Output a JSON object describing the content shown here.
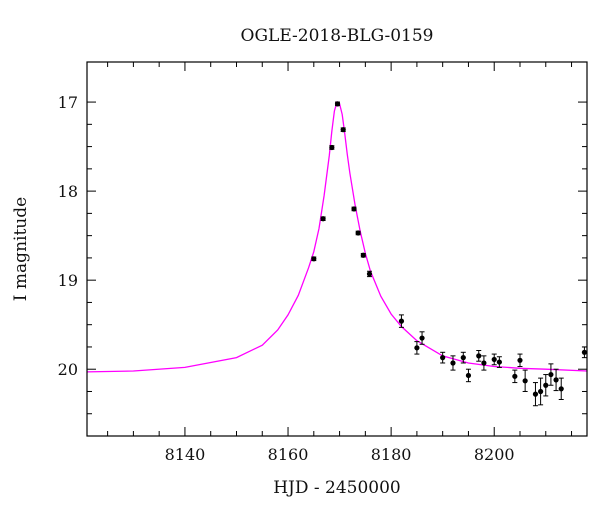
{
  "chart_data": {
    "type": "scatter",
    "title": "OGLE-2018-BLG-0159",
    "xlabel": "HJD - 2450000",
    "ylabel": "I magnitude",
    "xlim": [
      8121,
      8218
    ],
    "ylim": [
      20.75,
      16.55
    ],
    "y_inverted": true,
    "x_ticks": [
      8140,
      8160,
      8180,
      8200
    ],
    "y_ticks": [
      17,
      18,
      19,
      20
    ],
    "grid": false,
    "legend": "none",
    "model_curve": {
      "color": "#ff00ff",
      "x": [
        8121,
        8130,
        8140,
        8150,
        8155,
        8158,
        8160,
        8162,
        8164,
        8165,
        8166,
        8167,
        8168,
        8168.5,
        8169,
        8169.5,
        8170,
        8170.5,
        8171,
        8171.5,
        8172,
        8173,
        8174,
        8175,
        8176,
        8178,
        8180,
        8182,
        8185,
        8190,
        8195,
        8200,
        8205,
        8210,
        8218
      ],
      "y": [
        20.03,
        20.02,
        19.98,
        19.87,
        19.73,
        19.56,
        19.39,
        19.17,
        18.86,
        18.68,
        18.42,
        18.05,
        17.6,
        17.33,
        17.1,
        17.0,
        17.02,
        17.14,
        17.35,
        17.59,
        17.8,
        18.15,
        18.45,
        18.7,
        18.9,
        19.18,
        19.38,
        19.52,
        19.68,
        19.85,
        19.93,
        19.97,
        19.99,
        20.0,
        20.02
      ]
    },
    "series": [
      {
        "marker": "filled-circle",
        "color": "#000000",
        "x": [
          8165.0,
          8166.8,
          8168.5,
          8169.6,
          8170.7,
          8172.8,
          8173.6,
          8174.6,
          8175.8,
          8182.0,
          8185.0,
          8186.0,
          8190.0,
          8192.0,
          8194.0,
          8195.0,
          8197.0,
          8198.0,
          8200.0,
          8201.0,
          8204.0,
          8205.0,
          8206.0,
          8208.0,
          8209.0,
          8210.0,
          8211.0,
          8212.0,
          8213.0,
          8217.5
        ],
        "y": [
          18.76,
          18.31,
          17.51,
          17.02,
          17.31,
          18.2,
          18.47,
          18.72,
          18.93,
          19.46,
          19.76,
          19.65,
          19.87,
          19.93,
          19.87,
          20.07,
          19.85,
          19.93,
          19.89,
          19.92,
          20.08,
          19.9,
          20.13,
          20.28,
          20.25,
          20.18,
          20.06,
          20.12,
          20.22,
          19.81
        ],
        "yerr": [
          0.02,
          0.02,
          0.02,
          0.02,
          0.02,
          0.02,
          0.02,
          0.02,
          0.03,
          0.07,
          0.07,
          0.07,
          0.06,
          0.08,
          0.06,
          0.07,
          0.06,
          0.08,
          0.06,
          0.06,
          0.07,
          0.07,
          0.12,
          0.13,
          0.15,
          0.12,
          0.12,
          0.12,
          0.12,
          0.06
        ]
      }
    ]
  }
}
